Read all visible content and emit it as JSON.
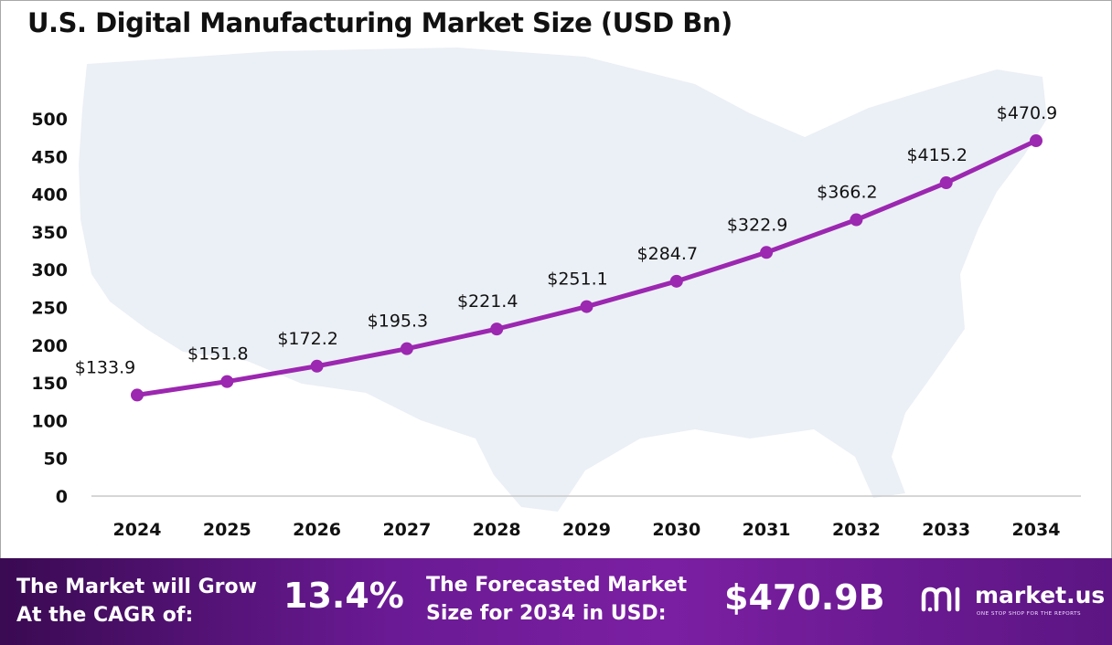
{
  "title": "U.S. Digital Manufacturing Market Size (USD Bn)",
  "chart_data": {
    "type": "line",
    "title": "U.S. Digital Manufacturing Market Size (USD Bn)",
    "categories": [
      "2024",
      "2025",
      "2026",
      "2027",
      "2028",
      "2029",
      "2030",
      "2031",
      "2032",
      "2033",
      "2034"
    ],
    "values": [
      133.9,
      151.8,
      172.2,
      195.3,
      221.4,
      251.1,
      284.7,
      322.9,
      366.2,
      415.2,
      470.9
    ],
    "data_labels": [
      "$133.9",
      "$151.8",
      "$172.2",
      "$195.3",
      "$221.4",
      "$251.1",
      "$284.7",
      "$322.9",
      "$366.2",
      "$415.2",
      "$470.9"
    ],
    "yticks": [
      0,
      50,
      100,
      150,
      200,
      250,
      300,
      350,
      400,
      450,
      500
    ],
    "ylim": [
      0,
      500
    ],
    "xlabel": "",
    "ylabel": "",
    "grid": false,
    "line_color": "#9c27b0",
    "background_map_color": "#e9eef6"
  },
  "footer": {
    "cagr_line1": "The Market will Grow",
    "cagr_line2": "At the CAGR of:",
    "cagr_value": "13.4%",
    "forecast_line1": "The Forecasted Market",
    "forecast_line2": "Size for 2034 in USD:",
    "forecast_value": "$470.9B",
    "brand_name": "market.us",
    "brand_tagline": "ONE STOP SHOP FOR THE REPORTS",
    "brand_icon": "market-us-logo-icon"
  }
}
